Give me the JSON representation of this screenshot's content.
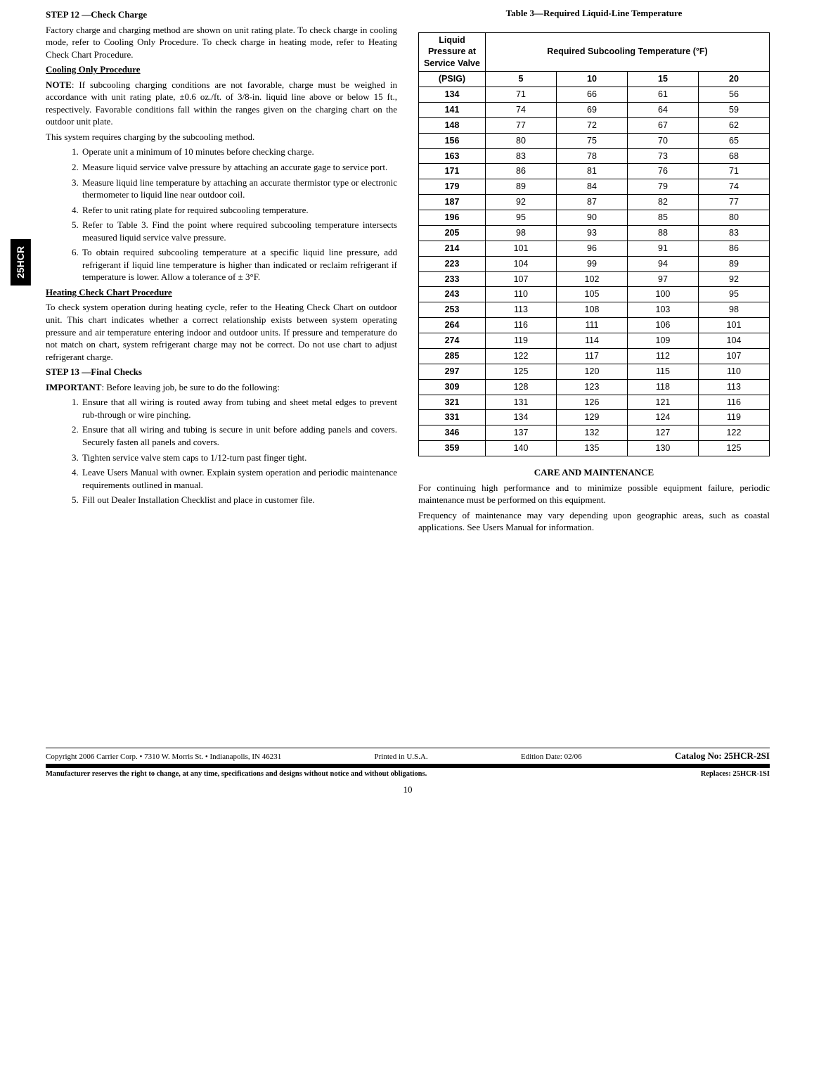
{
  "sideTab": "25HCR",
  "left": {
    "step12_head": "STEP 12 —Check Charge",
    "step12_body": "Factory charge and charging method are shown on unit rating plate. To check charge in cooling mode, refer to Cooling Only Procedure. To check charge in heating mode, refer to Heating Check Chart Procedure.",
    "cooling_head": "Cooling Only Procedure",
    "note_lead": "NOTE",
    "note_body": ":  If subcooling charging conditions are not favorable, charge must be weighed in accordance with unit rating plate, ±0.6 oz./ft. of 3/8-in. liquid line above or below 15 ft., respectively. Favorable conditions fall within the ranges given on the charging chart on the outdoor unit plate.",
    "subcool_intro": "This system requires charging by the subcooling method.",
    "cooling_steps": [
      "Operate unit a minimum of 10 minutes before checking charge.",
      "Measure liquid service valve pressure by attaching an accurate gage to service port.",
      "Measure liquid line temperature by attaching an accurate thermistor type or electronic thermometer to liquid line near outdoor coil.",
      "Refer to unit rating plate for required subcooling temperature.",
      "Refer to Table 3. Find the point where required subcooling temperature intersects measured liquid service valve pressure.",
      "To obtain required subcooling temperature at a specific liquid line pressure, add refrigerant if liquid line temperature is higher than indicated or reclaim refrigerant if temperature is lower. Allow a tolerance of ± 3°F."
    ],
    "heating_head": "Heating Check Chart Procedure",
    "heating_body": "To check system operation during heating cycle, refer to the Heating Check Chart on outdoor unit. This chart indicates whether a correct relationship exists between system operating pressure and air temperature entering indoor and outdoor units. If pressure and temperature do not match on chart, system refrigerant charge may not be correct. Do not use chart to adjust refrigerant charge.",
    "step13_head": "STEP 13 —Final Checks",
    "important_lead": "IMPORTANT",
    "important_body": ":  Before leaving job, be sure to do the following:",
    "final_steps": [
      "Ensure that all wiring is routed away from tubing and sheet metal edges to prevent rub-through or wire pinching.",
      "Ensure that all wiring and tubing is secure in unit before adding panels and covers. Securely fasten all panels and covers.",
      "Tighten service valve stem caps to 1/12-turn past finger tight.",
      "Leave Users Manual with owner. Explain system operation and periodic maintenance requirements outlined in manual.",
      "Fill out Dealer Installation Checklist and place in customer file."
    ]
  },
  "right": {
    "table_title": "Table 3—Required Liquid-Line Temperature",
    "th1": "Liquid Pressure at Service Valve",
    "th2": "Required Subcooling Temperature (°F)",
    "psig": "(PSIG)",
    "subcool_cols": [
      "5",
      "10",
      "15",
      "20"
    ],
    "rows": [
      [
        "134",
        "71",
        "66",
        "61",
        "56"
      ],
      [
        "141",
        "74",
        "69",
        "64",
        "59"
      ],
      [
        "148",
        "77",
        "72",
        "67",
        "62"
      ],
      [
        "156",
        "80",
        "75",
        "70",
        "65"
      ],
      [
        "163",
        "83",
        "78",
        "73",
        "68"
      ],
      [
        "171",
        "86",
        "81",
        "76",
        "71"
      ],
      [
        "179",
        "89",
        "84",
        "79",
        "74"
      ],
      [
        "187",
        "92",
        "87",
        "82",
        "77"
      ],
      [
        "196",
        "95",
        "90",
        "85",
        "80"
      ],
      [
        "205",
        "98",
        "93",
        "88",
        "83"
      ],
      [
        "214",
        "101",
        "96",
        "91",
        "86"
      ],
      [
        "223",
        "104",
        "99",
        "94",
        "89"
      ],
      [
        "233",
        "107",
        "102",
        "97",
        "92"
      ],
      [
        "243",
        "110",
        "105",
        "100",
        "95"
      ],
      [
        "253",
        "113",
        "108",
        "103",
        "98"
      ],
      [
        "264",
        "116",
        "111",
        "106",
        "101"
      ],
      [
        "274",
        "119",
        "114",
        "109",
        "104"
      ],
      [
        "285",
        "122",
        "117",
        "112",
        "107"
      ],
      [
        "297",
        "125",
        "120",
        "115",
        "110"
      ],
      [
        "309",
        "128",
        "123",
        "118",
        "113"
      ],
      [
        "321",
        "131",
        "126",
        "121",
        "116"
      ],
      [
        "331",
        "134",
        "129",
        "124",
        "119"
      ],
      [
        "346",
        "137",
        "132",
        "127",
        "122"
      ],
      [
        "359",
        "140",
        "135",
        "130",
        "125"
      ]
    ],
    "care_head": "CARE AND MAINTENANCE",
    "care_p1": "For continuing high performance and to minimize possible equipment failure, periodic maintenance must be performed on this equipment.",
    "care_p2": "Frequency of maintenance may vary depending upon geographic areas, such as coastal applications. See Users Manual for information."
  },
  "footer": {
    "copyright": "Copyright 2006 Carrier Corp. • 7310 W. Morris St. • Indianapolis, IN 46231",
    "printed": "Printed in U.S.A.",
    "edition": "Edition Date: 02/06",
    "catalog": "Catalog No: 25HCR-2SI",
    "disclaimer": "Manufacturer reserves the right to change, at any time, specifications and designs without notice and without obligations.",
    "replaces": "Replaces: 25HCR-1SI",
    "page": "10"
  }
}
